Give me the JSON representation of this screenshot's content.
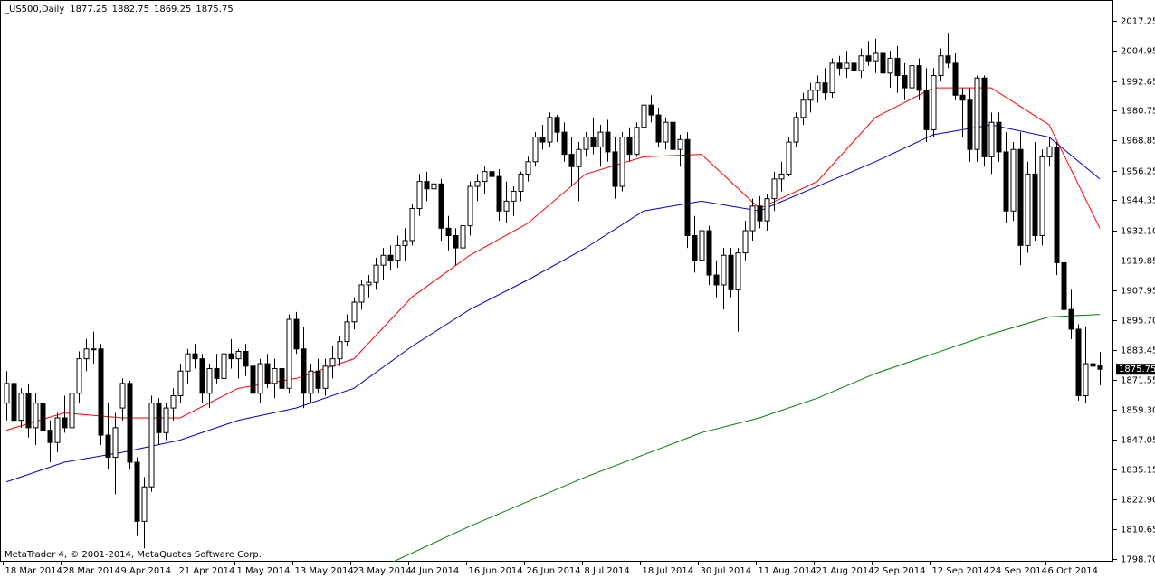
{
  "chart_data": {
    "type": "candlestick",
    "title": "_US500,Daily",
    "copyright": "MetaTrader 4, © 2001-2014, MetaQuotes Software Corp.",
    "grid": false,
    "up_color": "#ffffff",
    "down_color": "#000000",
    "border_color": "#000000",
    "price_box_color": "#000000",
    "ylim": [
      1797.6,
      2024.2
    ],
    "yticks": [
      2017.25,
      2004.95,
      1992.65,
      1980.75,
      1968.85,
      1956.25,
      1944.35,
      {
        "value": 1932.1,
        "label": "1932.10"
      },
      1919.85,
      1907.95,
      {
        "value": 1895.7,
        "label": "1895.70"
      },
      1883.45,
      1871.55,
      {
        "value": 1859.3,
        "label": "1859.30"
      },
      1847.05,
      1835.15,
      {
        "value": 1822.9,
        "label": "1822.90"
      },
      1810.65,
      {
        "value": 1798.7,
        "label": "1798.70"
      }
    ],
    "categories": [
      "18 Mar 2014",
      null,
      null,
      null,
      null,
      null,
      null,
      null,
      "28 Mar 2014",
      null,
      null,
      null,
      null,
      null,
      null,
      null,
      "9 Apr 2014",
      null,
      null,
      null,
      null,
      null,
      null,
      null,
      "21 Apr 2014",
      null,
      null,
      null,
      null,
      null,
      null,
      null,
      "1 May 2014",
      null,
      null,
      null,
      null,
      null,
      null,
      null,
      "13 May 2014",
      null,
      null,
      null,
      null,
      null,
      null,
      null,
      "23 May 2014",
      null,
      null,
      null,
      null,
      null,
      null,
      null,
      "4 Jun 2014",
      null,
      null,
      null,
      null,
      null,
      null,
      null,
      "16 Jun 2014",
      null,
      null,
      null,
      null,
      null,
      null,
      null,
      "26 Jun 2014",
      null,
      null,
      null,
      null,
      null,
      null,
      null,
      "8 Jul 2014",
      null,
      null,
      null,
      null,
      null,
      null,
      null,
      "18 Jul 2014",
      null,
      null,
      null,
      null,
      null,
      null,
      null,
      "30 Jul 2014",
      null,
      null,
      null,
      null,
      null,
      null,
      null,
      "11 Aug 2014",
      null,
      null,
      null,
      null,
      null,
      null,
      null,
      "21 Aug 2014",
      null,
      null,
      null,
      null,
      null,
      null,
      null,
      "2 Sep 2014",
      null,
      null,
      null,
      null,
      null,
      null,
      null,
      "12 Sep 2014",
      null,
      null,
      null,
      null,
      null,
      null,
      null,
      "24 Sep 2014",
      null,
      null,
      null,
      null,
      null,
      null,
      null,
      "6 Oct 2014",
      null,
      null,
      null,
      null,
      null,
      null,
      null
    ],
    "ohlc": [
      [
        1862,
        1875,
        1855,
        1870
      ],
      [
        1870,
        1872,
        1850,
        1855
      ],
      [
        1855,
        1868,
        1852,
        1866
      ],
      [
        1866,
        1870,
        1848,
        1852
      ],
      [
        1852,
        1866,
        1845,
        1862
      ],
      [
        1862,
        1868,
        1848,
        1851
      ],
      [
        1851,
        1855,
        1838,
        1846
      ],
      [
        1846,
        1858,
        1842,
        1856
      ],
      [
        1856,
        1865,
        1850,
        1852
      ],
      [
        1852,
        1870,
        1848,
        1866
      ],
      [
        1866,
        1883,
        1862,
        1880
      ],
      [
        1880,
        1888,
        1875,
        1884
      ],
      [
        1884,
        1891,
        1878,
        1884
      ],
      [
        1884,
        1886,
        1845,
        1849
      ],
      [
        1849,
        1862,
        1835,
        1840
      ],
      [
        1840,
        1858,
        1825,
        1852
      ],
      [
        1860,
        1872,
        1855,
        1870
      ],
      [
        1870,
        1871,
        1835,
        1838
      ],
      [
        1838,
        1840,
        1808,
        1814
      ],
      [
        1814,
        1832,
        1803,
        1828
      ],
      [
        1828,
        1865,
        1826,
        1862
      ],
      [
        1862,
        1864,
        1845,
        1850
      ],
      [
        1850,
        1862,
        1847,
        1860
      ],
      [
        1860,
        1868,
        1855,
        1865
      ],
      [
        1865,
        1878,
        1862,
        1875
      ],
      [
        1875,
        1884,
        1870,
        1882
      ],
      [
        1882,
        1886,
        1876,
        1880
      ],
      [
        1880,
        1882,
        1862,
        1866
      ],
      [
        1866,
        1878,
        1860,
        1876
      ],
      [
        1876,
        1882,
        1870,
        1872
      ],
      [
        1872,
        1885,
        1868,
        1882
      ],
      [
        1882,
        1888,
        1876,
        1880
      ],
      [
        1880,
        1884,
        1872,
        1883
      ],
      [
        1883,
        1886,
        1873,
        1877
      ],
      [
        1877,
        1880,
        1862,
        1866
      ],
      [
        1866,
        1880,
        1862,
        1878
      ],
      [
        1878,
        1882,
        1868,
        1870
      ],
      [
        1870,
        1880,
        1864,
        1876
      ],
      [
        1876,
        1878,
        1865,
        1868
      ],
      [
        1868,
        1898,
        1866,
        1896
      ],
      [
        1896,
        1899,
        1882,
        1884
      ],
      [
        1884,
        1893,
        1860,
        1866
      ],
      [
        1866,
        1878,
        1862,
        1875
      ],
      [
        1875,
        1880,
        1866,
        1868
      ],
      [
        1868,
        1880,
        1865,
        1877
      ],
      [
        1877,
        1885,
        1872,
        1880
      ],
      [
        1880,
        1889,
        1877,
        1887
      ],
      [
        1887,
        1898,
        1885,
        1895
      ],
      [
        1895,
        1905,
        1892,
        1903
      ],
      [
        1903,
        1912,
        1900,
        1910
      ],
      [
        1910,
        1914,
        1905,
        1911
      ],
      [
        1911,
        1921,
        1908,
        1918
      ],
      [
        1918,
        1925,
        1912,
        1922
      ],
      [
        1922,
        1926,
        1916,
        1920
      ],
      [
        1920,
        1930,
        1917,
        1926
      ],
      [
        1926,
        1933,
        1920,
        1928
      ],
      [
        1928,
        1943,
        1926,
        1941
      ],
      [
        1941,
        1955,
        1938,
        1952
      ],
      [
        1952,
        1956,
        1944,
        1949
      ],
      [
        1949,
        1954,
        1945,
        1951
      ],
      [
        1951,
        1953,
        1928,
        1933
      ],
      [
        1933,
        1938,
        1924,
        1930
      ],
      [
        1930,
        1933,
        1918,
        1925
      ],
      [
        1925,
        1940,
        1922,
        1934
      ],
      [
        1934,
        1952,
        1930,
        1950
      ],
      [
        1950,
        1955,
        1944,
        1952
      ],
      [
        1952,
        1958,
        1947,
        1956
      ],
      [
        1956,
        1960,
        1950,
        1954
      ],
      [
        1954,
        1957,
        1936,
        1940
      ],
      [
        1940,
        1952,
        1935,
        1944
      ],
      [
        1944,
        1950,
        1938,
        1948
      ],
      [
        1948,
        1956,
        1944,
        1955
      ],
      [
        1955,
        1962,
        1952,
        1960
      ],
      [
        1960,
        1972,
        1958,
        1970
      ],
      [
        1970,
        1975,
        1965,
        1968
      ],
      [
        1968,
        1980,
        1966,
        1978
      ],
      [
        1978,
        1979,
        1968,
        1972
      ],
      [
        1972,
        1976,
        1960,
        1963
      ],
      [
        1963,
        1970,
        1950,
        1958
      ],
      [
        1958,
        1968,
        1944,
        1965
      ],
      [
        1965,
        1972,
        1962,
        1970
      ],
      [
        1970,
        1978,
        1963,
        1966
      ],
      [
        1966,
        1975,
        1958,
        1972
      ],
      [
        1972,
        1977,
        1960,
        1964
      ],
      [
        1964,
        1970,
        1945,
        1950
      ],
      [
        1950,
        1972,
        1948,
        1970
      ],
      [
        1970,
        1974,
        1960,
        1963
      ],
      [
        1963,
        1976,
        1962,
        1974
      ],
      [
        1974,
        1985,
        1972,
        1983
      ],
      [
        1983,
        1987,
        1976,
        1979
      ],
      [
        1979,
        1982,
        1966,
        1968
      ],
      [
        1968,
        1978,
        1965,
        1976
      ],
      [
        1976,
        1980,
        1962,
        1965
      ],
      [
        1965,
        1971,
        1958,
        1969
      ],
      [
        1969,
        1972,
        1925,
        1930
      ],
      [
        1930,
        1938,
        1915,
        1920
      ],
      [
        1920,
        1935,
        1918,
        1932
      ],
      [
        1932,
        1934,
        1910,
        1914
      ],
      [
        1914,
        1920,
        1905,
        1910
      ],
      [
        1910,
        1925,
        1900,
        1922
      ],
      [
        1922,
        1925,
        1905,
        1908
      ],
      [
        1908,
        1925,
        1891,
        1923
      ],
      [
        1923,
        1936,
        1920,
        1932
      ],
      [
        1932,
        1945,
        1928,
        1942
      ],
      [
        1942,
        1946,
        1933,
        1936
      ],
      [
        1936,
        1947,
        1932,
        1945
      ],
      [
        1945,
        1956,
        1940,
        1953
      ],
      [
        1953,
        1960,
        1948,
        1955
      ],
      [
        1955,
        1970,
        1954,
        1968
      ],
      [
        1968,
        1980,
        1966,
        1978
      ],
      [
        1978,
        1988,
        1975,
        1985
      ],
      [
        1985,
        1992,
        1980,
        1989
      ],
      [
        1989,
        1995,
        1984,
        1992
      ],
      [
        1992,
        1998,
        1985,
        1988
      ],
      [
        1988,
        2002,
        1986,
        2000
      ],
      [
        2000,
        2003,
        1995,
        1998
      ],
      [
        1998,
        2005,
        1994,
        2000
      ],
      [
        2000,
        2004,
        1992,
        1997
      ],
      [
        1997,
        2006,
        1994,
        2003
      ],
      [
        2003,
        2009,
        1999,
        2001
      ],
      [
        2001,
        2010,
        1996,
        2004
      ],
      [
        2004,
        2009,
        1993,
        1996
      ],
      [
        1996,
        2005,
        1990,
        2002
      ],
      [
        2002,
        2007,
        1988,
        1995
      ],
      [
        1995,
        2000,
        1985,
        1990
      ],
      [
        1990,
        2001,
        1983,
        1999
      ],
      [
        1999,
        2002,
        1985,
        1989
      ],
      [
        1989,
        1998,
        1968,
        1973
      ],
      [
        1973,
        1998,
        1970,
        1995
      ],
      [
        1995,
        2006,
        1993,
        2003
      ],
      [
        2003,
        2012,
        1998,
        2000
      ],
      [
        2000,
        2004,
        1985,
        1987
      ],
      [
        1987,
        1990,
        1970,
        1985
      ],
      [
        1985,
        1990,
        1960,
        1965
      ],
      [
        1965,
        1995,
        1960,
        1994
      ],
      [
        1994,
        1995,
        1958,
        1962
      ],
      [
        1962,
        1980,
        1955,
        1976
      ],
      [
        1976,
        1980,
        1960,
        1964
      ],
      [
        1964,
        1972,
        1935,
        1940
      ],
      [
        1940,
        1968,
        1936,
        1965
      ],
      [
        1965,
        1972,
        1918,
        1926
      ],
      [
        1926,
        1960,
        1923,
        1955
      ],
      [
        1955,
        1968,
        1928,
        1930
      ],
      [
        1930,
        1965,
        1926,
        1962
      ],
      [
        1962,
        1970,
        1958,
        1966
      ],
      [
        1966,
        1968,
        1914,
        1919
      ],
      [
        1919,
        1932,
        1898,
        1900
      ],
      [
        1900,
        1908,
        1888,
        1892
      ],
      [
        1892,
        1894,
        1863,
        1865
      ],
      [
        1865,
        1893,
        1862,
        1878
      ],
      [
        1878,
        1883,
        1865,
        1877
      ],
      [
        1877.25,
        1882.75,
        1869.25,
        1875.75
      ]
    ],
    "overlays": [
      {
        "color": "#ff0000",
        "x": [
          0,
          8,
          16,
          24,
          32,
          40,
          48,
          56,
          64,
          72,
          80,
          88,
          96,
          104,
          112,
          120,
          128,
          136,
          144,
          151
        ],
        "values": [
          1851,
          1858,
          1856,
          1856,
          1868,
          1872,
          1880,
          1905,
          1922,
          1935,
          1955,
          1962,
          1963,
          1941,
          1952,
          1978,
          1990,
          1990,
          1975,
          1933
        ]
      },
      {
        "color": "#0000cc",
        "x": [
          0,
          8,
          16,
          24,
          32,
          40,
          48,
          56,
          64,
          72,
          80,
          88,
          96,
          104,
          112,
          120,
          128,
          136,
          144,
          151
        ],
        "values": [
          1830,
          1838,
          1842,
          1847,
          1855,
          1860,
          1868,
          1885,
          1900,
          1912,
          1925,
          1940,
          1944,
          1940,
          1950,
          1960,
          1971,
          1975,
          1970,
          1953
        ]
      },
      {
        "color": "#008000",
        "x": [
          53,
          64,
          72,
          80,
          88,
          96,
          104,
          112,
          120,
          128,
          136,
          144,
          151
        ],
        "values": [
          1797,
          1812,
          1822,
          1832,
          1841,
          1850,
          1856,
          1864,
          1874,
          1882,
          1890,
          1897,
          1898
        ]
      }
    ]
  }
}
